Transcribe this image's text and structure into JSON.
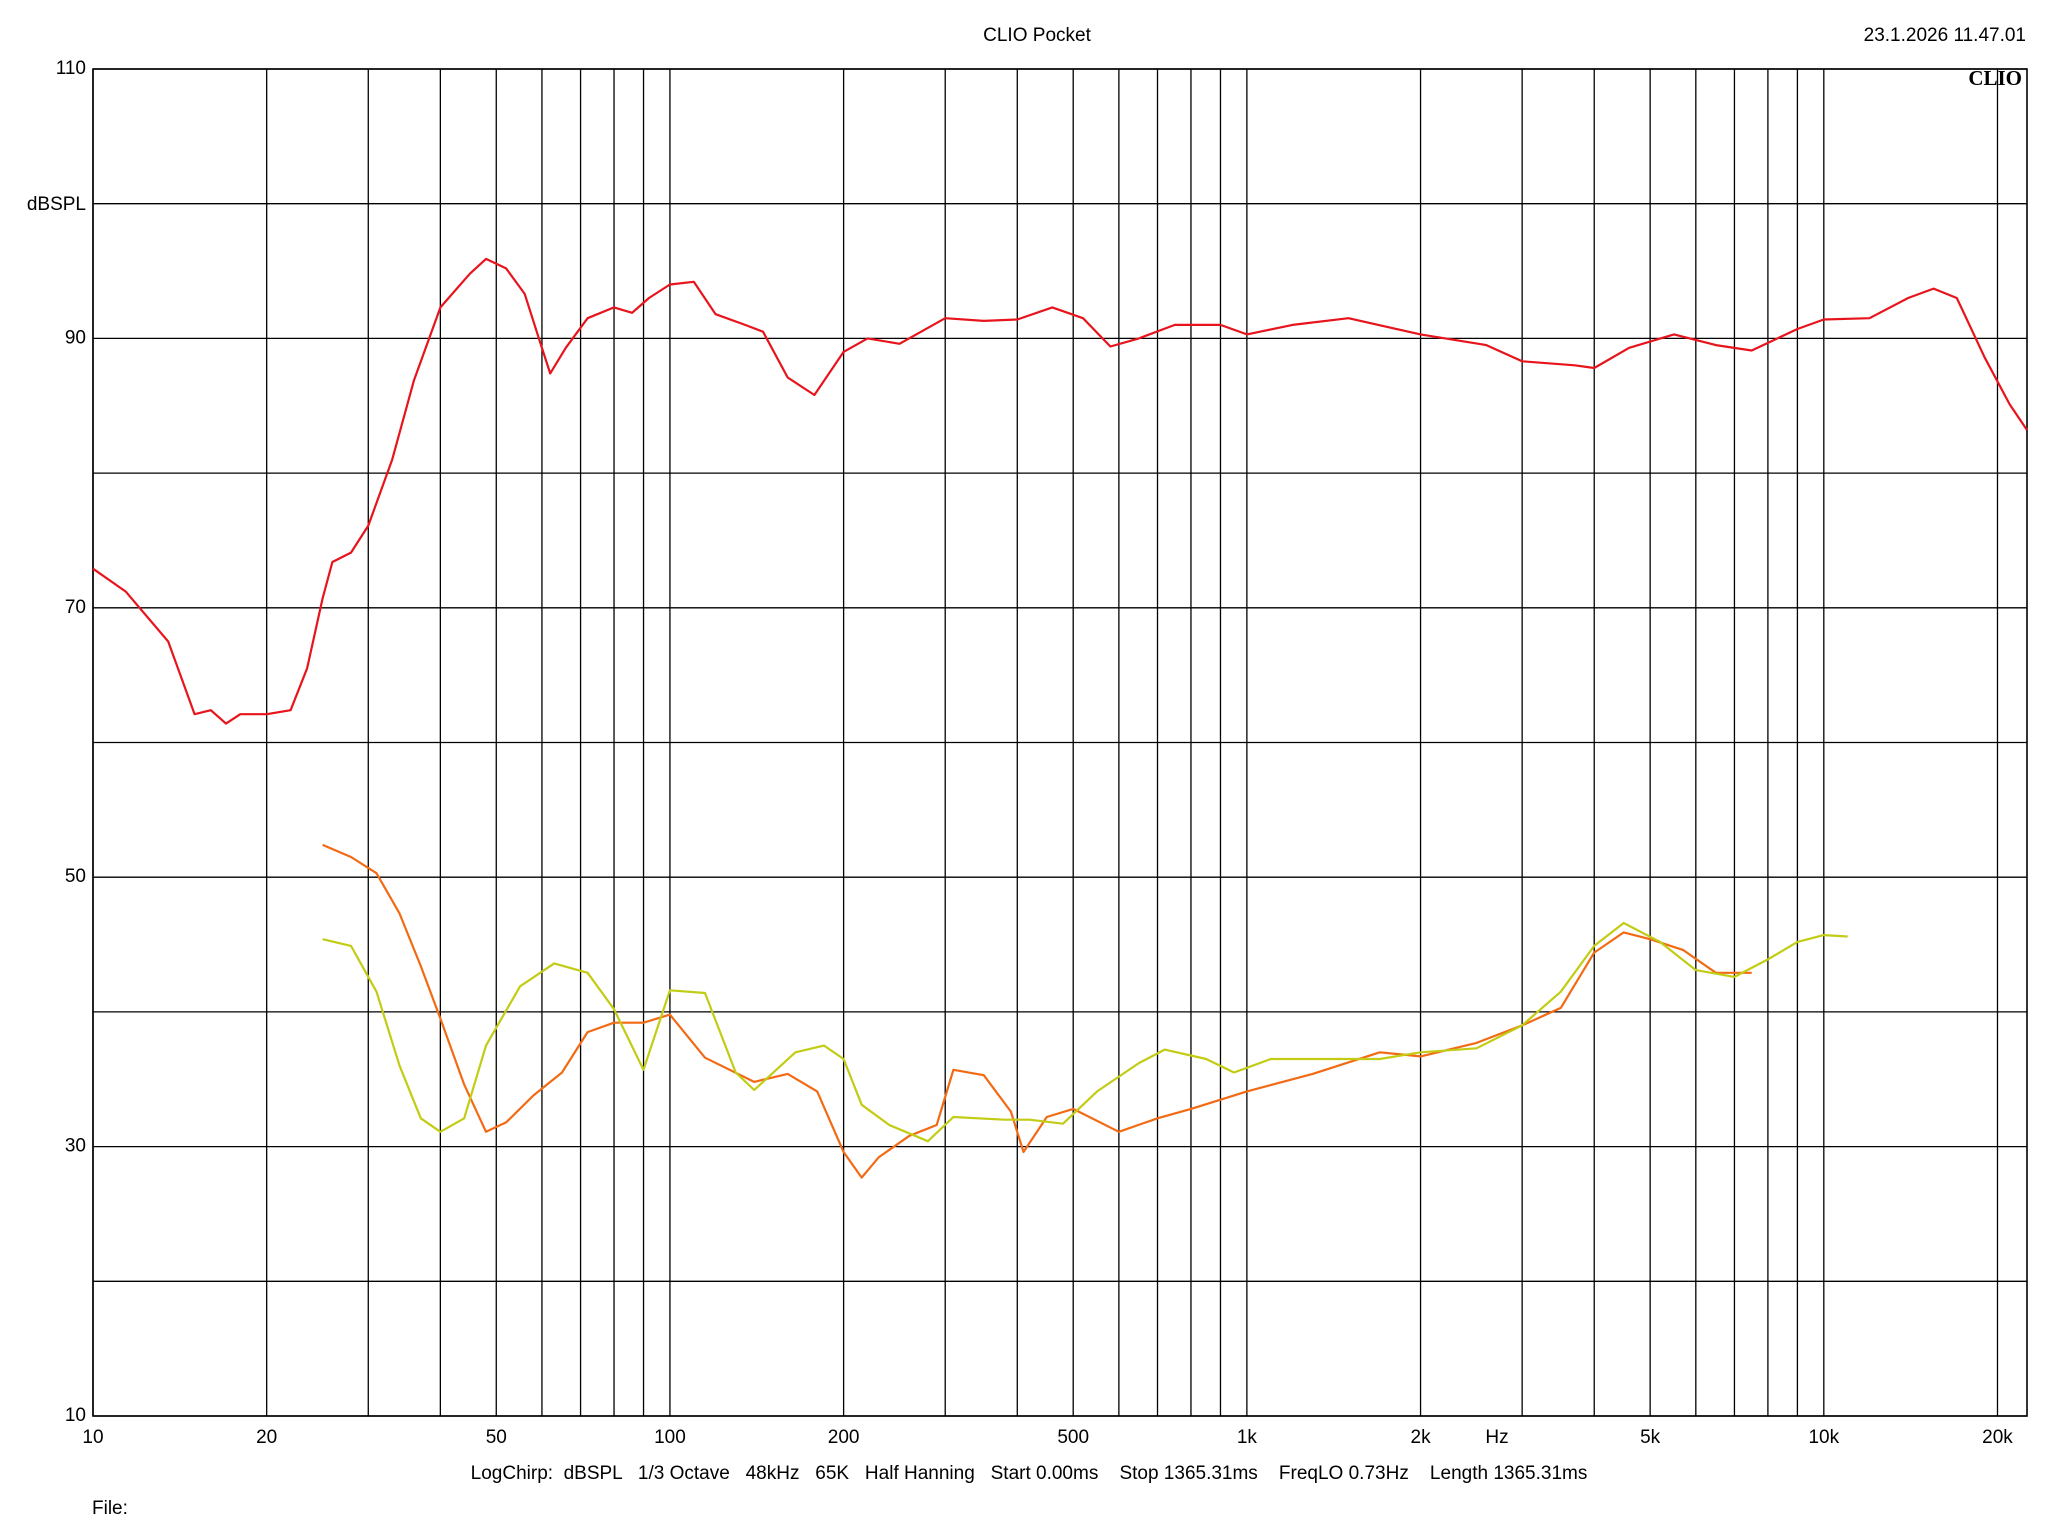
{
  "chart_data": {
    "type": "line",
    "title": "CLIO Pocket",
    "timestamp": "23.1.2026 11.47.01",
    "logo": "CLIO",
    "ylabel": "dBSPL",
    "xlabel": "Hz",
    "footer": "LogChirp:  dBSPL   1/3 Octave   48kHz   65K   Half Hanning   Start 0.00ms    Stop 1365.31ms    FreqLO 0.73Hz    Length 1365.31ms",
    "file_label": "File:",
    "xscale": "log",
    "grid": true,
    "xlim": [
      10,
      22500
    ],
    "ylim": [
      10,
      110
    ],
    "xticks": [
      10,
      20,
      50,
      100,
      200,
      500,
      {
        "value": 1000,
        "label": "1k"
      },
      {
        "value": 2000,
        "label": "2k"
      },
      {
        "value": 5000,
        "label": "5k"
      },
      {
        "value": 10000,
        "label": "10k"
      },
      {
        "value": 20000,
        "label": "20k"
      }
    ],
    "x_minor_ticks": [
      30,
      40,
      60,
      70,
      80,
      90,
      300,
      400,
      600,
      700,
      800,
      900,
      3000,
      4000,
      6000,
      7000,
      8000,
      9000
    ],
    "yticks": [
      10,
      30,
      50,
      70,
      90,
      110
    ],
    "y_minor_ticks": [
      20,
      40,
      60,
      80,
      100
    ],
    "series": [
      {
        "color": "#e8141c",
        "x": [
          10,
          11.4,
          13.5,
          15,
          16,
          17,
          18,
          20,
          22,
          23.5,
          25,
          26,
          28,
          30,
          33,
          36,
          40,
          45,
          48,
          52,
          56,
          60,
          62,
          66,
          72,
          80,
          86,
          92,
          100,
          110,
          120,
          135,
          145,
          160,
          178,
          200,
          220,
          250,
          300,
          350,
          400,
          460,
          520,
          580,
          650,
          750,
          900,
          1000,
          1200,
          1500,
          2000,
          2600,
          3000,
          3700,
          4000,
          4600,
          5500,
          6500,
          7500,
          9000,
          10000,
          12000,
          14000,
          15500,
          17000,
          19000,
          21000,
          22500
        ],
        "values": [
          72.9,
          71.2,
          67.5,
          62.1,
          62.4,
          61.4,
          62.1,
          62.1,
          62.4,
          65.5,
          70.7,
          73.4,
          74.1,
          76.1,
          81.0,
          86.9,
          92.3,
          94.8,
          95.9,
          95.2,
          93.3,
          89.3,
          87.4,
          89.3,
          91.5,
          92.3,
          91.9,
          93.0,
          94.0,
          94.2,
          91.8,
          91.0,
          90.5,
          87.1,
          85.8,
          89.0,
          90.0,
          89.6,
          91.5,
          91.3,
          91.4,
          92.3,
          91.5,
          89.4,
          90.0,
          91.0,
          91.0,
          90.3,
          91.0,
          91.5,
          90.3,
          89.5,
          88.3,
          88.0,
          87.8,
          89.3,
          90.3,
          89.5,
          89.1,
          90.7,
          91.4,
          91.5,
          93.0,
          93.7,
          93.0,
          88.6,
          85.1,
          83.2
        ]
      },
      {
        "color": "#f26a14",
        "x": [
          25,
          28,
          31,
          34,
          37,
          40,
          44,
          48,
          52,
          58,
          65,
          72,
          80,
          90,
          100,
          115,
          140,
          160,
          180,
          200,
          215,
          230,
          260,
          290,
          310,
          350,
          390,
          410,
          450,
          500,
          600,
          700,
          800,
          1000,
          1300,
          1700,
          2000,
          2500,
          3000,
          3500,
          4000,
          4500,
          5000,
          5700,
          6500,
          7500
        ],
        "values": [
          52.4,
          51.5,
          50.3,
          47.3,
          43.4,
          39.5,
          34.6,
          31.1,
          31.8,
          33.8,
          35.5,
          38.5,
          39.2,
          39.2,
          39.8,
          36.6,
          34.8,
          35.4,
          34.1,
          29.6,
          27.7,
          29.2,
          30.8,
          31.6,
          35.7,
          35.3,
          32.6,
          29.6,
          32.2,
          32.8,
          31.1,
          32.1,
          32.8,
          34.1,
          35.4,
          37.0,
          36.7,
          37.7,
          39.0,
          40.3,
          44.4,
          45.9,
          45.4,
          44.6,
          42.9,
          42.9
        ]
      },
      {
        "color": "#c2cc14",
        "x": [
          25,
          28,
          31,
          34,
          37,
          40,
          44,
          48,
          55,
          63,
          72,
          80,
          90,
          100,
          115,
          130,
          140,
          165,
          185,
          200,
          215,
          240,
          280,
          310,
          380,
          420,
          480,
          550,
          650,
          720,
          850,
          950,
          1100,
          1400,
          1700,
          2000,
          2500,
          3000,
          3500,
          4000,
          4500,
          5200,
          6000,
          7000,
          8000,
          9000,
          10000,
          11000
        ],
        "values": [
          45.4,
          44.9,
          41.5,
          36.0,
          32.1,
          31.1,
          32.1,
          37.5,
          41.9,
          43.6,
          42.9,
          40.2,
          35.7,
          41.6,
          41.4,
          35.5,
          34.2,
          37.0,
          37.5,
          36.5,
          33.1,
          31.6,
          30.4,
          32.2,
          32.0,
          32.0,
          31.7,
          34.1,
          36.2,
          37.2,
          36.5,
          35.5,
          36.5,
          36.5,
          36.5,
          37.0,
          37.3,
          39.0,
          41.5,
          44.9,
          46.6,
          45.2,
          43.1,
          42.6,
          43.9,
          45.2,
          45.7,
          45.6
        ]
      }
    ]
  }
}
